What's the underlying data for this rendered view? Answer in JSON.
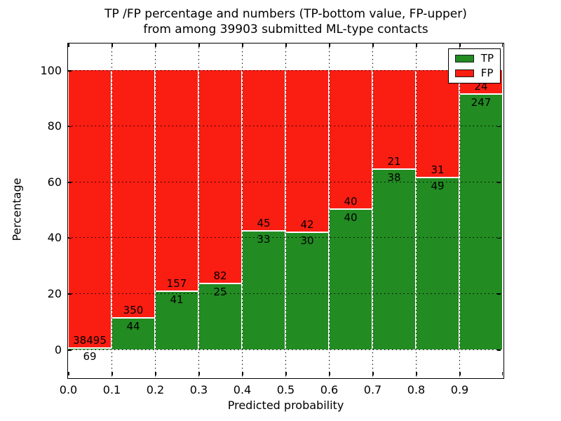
{
  "title": {
    "line1": "TP /FP percentage and numbers (TP-bottom value, FP-upper)",
    "line2": "from among 39903 submitted ML-type contacts"
  },
  "chart_data": {
    "type": "bar",
    "stacked": true,
    "normalized_to_percent": true,
    "title": "TP /FP percentage and numbers (TP-bottom value, FP-upper) from among 39903 submitted ML-type contacts",
    "xlabel": "Predicted probability",
    "ylabel": "Percentage",
    "categories": [
      "0.0-0.1",
      "0.1-0.2",
      "0.2-0.3",
      "0.3-0.4",
      "0.4-0.5",
      "0.5-0.6",
      "0.6-0.7",
      "0.7-0.8",
      "0.8-0.9",
      "0.9-1.0"
    ],
    "series": [
      {
        "name": "TP",
        "color": "#228b22",
        "values": [
          69,
          44,
          41,
          25,
          33,
          30,
          40,
          38,
          49,
          247
        ]
      },
      {
        "name": "FP",
        "color": "#fa1d12",
        "values": [
          38495,
          350,
          157,
          82,
          45,
          42,
          40,
          21,
          31,
          24
        ]
      }
    ],
    "x_tick_labels": [
      "0.0",
      "0.1",
      "0.2",
      "0.3",
      "0.4",
      "0.5",
      "0.6",
      "0.7",
      "0.8",
      "0.9"
    ],
    "y_tick_values": [
      0,
      20,
      40,
      60,
      80,
      100
    ],
    "y_tick_labels": [
      "0",
      "20",
      "40",
      "60",
      "80",
      "100"
    ],
    "xlim": [
      0.0,
      1.0
    ],
    "ylim": [
      -11,
      110
    ],
    "grid": "dotted",
    "legend": {
      "position": "upper right"
    },
    "bar_label_note": "counts annotated on bars: TP below segment boundary, FP above"
  },
  "colors": {
    "tp": "#228b22",
    "fp": "#fa1d12",
    "background": "#ffffff",
    "axis": "#000000"
  }
}
